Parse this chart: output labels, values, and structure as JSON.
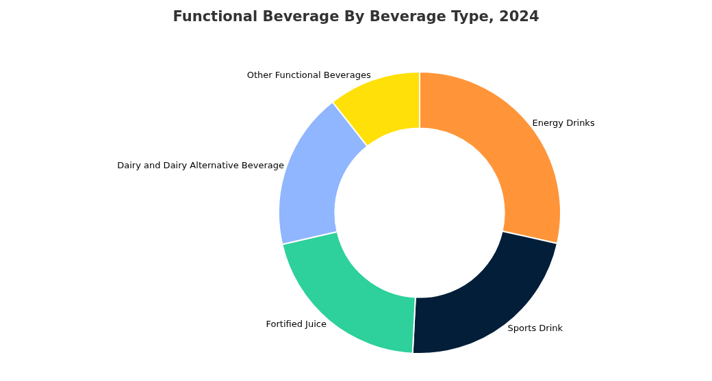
{
  "chart_data": {
    "type": "donut",
    "title": "Functional Beverage By Beverage Type, 2024",
    "categories": [
      "Energy Drinks",
      "Sports Drink",
      "Fortified Juice",
      "Dairy and Dairy Alternative Beverage",
      "Other Functional Beverages"
    ],
    "values": [
      28.5,
      22.3,
      20.6,
      18.0,
      10.6
    ],
    "colors": [
      "#ff9538",
      "#021e38",
      "#2ed09b",
      "#8fb6ff",
      "#ffe008"
    ],
    "legend": false
  }
}
